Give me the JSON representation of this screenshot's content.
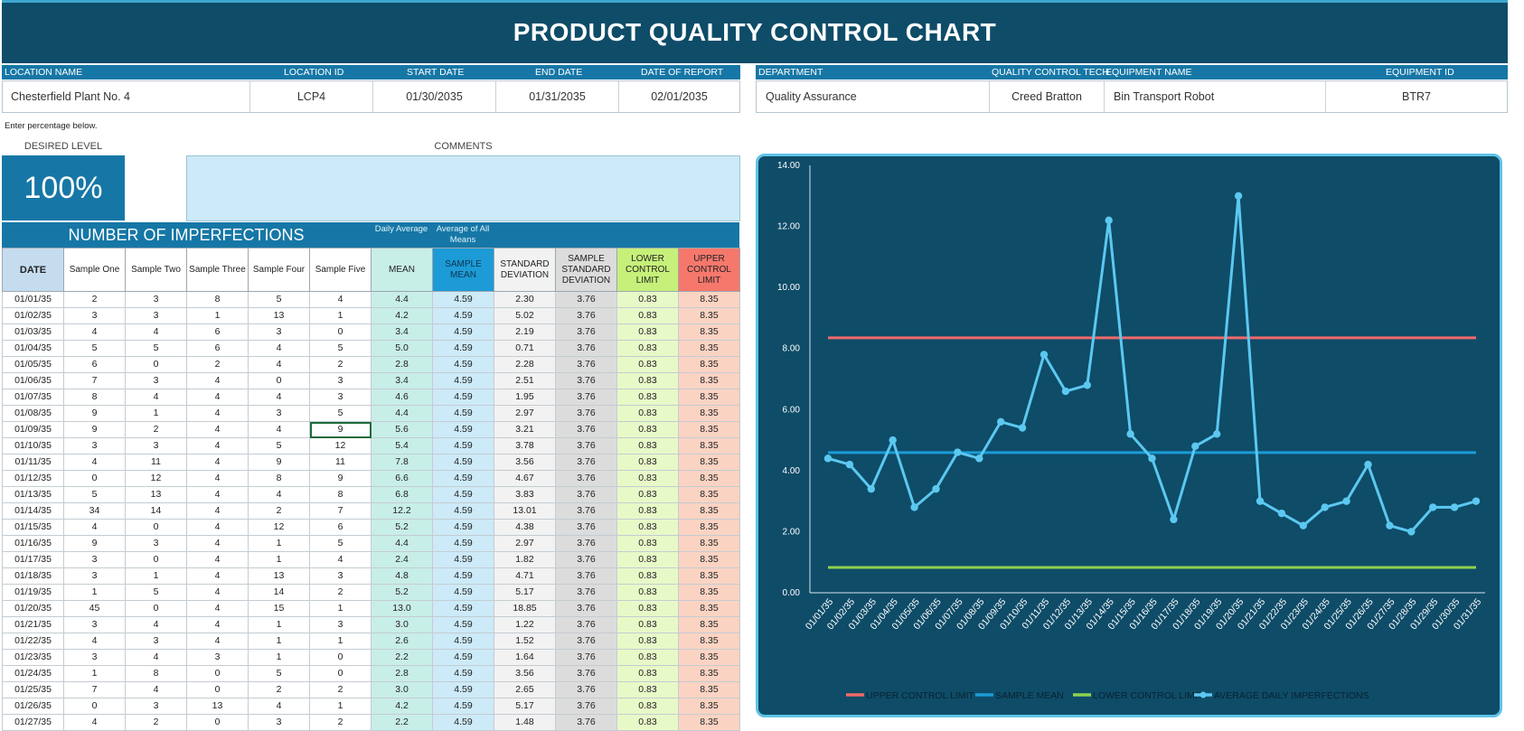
{
  "title": "PRODUCT QUALITY CONTROL CHART",
  "info": {
    "labels": [
      "LOCATION NAME",
      "LOCATION ID",
      "START DATE",
      "END DATE",
      "DATE OF REPORT",
      "DEPARTMENT",
      "QUALITY CONTROL TECH",
      "EQUIPMENT NAME",
      "EQUIPMENT ID"
    ],
    "location_name": "Chesterfield Plant No. 4",
    "location_id": "LCP4",
    "start_date": "01/30/2035",
    "end_date": "01/31/2035",
    "date_of_report": "02/01/2035",
    "department": "Quality Assurance",
    "qc_tech": "Creed Bratton",
    "equipment_name": "Bin Transport Robot",
    "equipment_id": "BTR7"
  },
  "note": "Enter percentage below.",
  "desired_level": {
    "label": "DESIRED LEVEL",
    "value": "100%"
  },
  "comments": {
    "label": "COMMENTS",
    "value": ""
  },
  "section_title": "NUMBER OF IMPERFECTIONS",
  "daily_average_label": "Daily Average",
  "avg_all_means_label": "Average of All Means",
  "columns": [
    "DATE",
    "Sample One",
    "Sample Two",
    "Sample Three",
    "Sample Four",
    "Sample Five",
    "MEAN",
    "SAMPLE MEAN",
    "STANDARD DEVIATION",
    "SAMPLE STANDARD DEVIATION",
    "LOWER CONTROL LIMIT",
    "UPPER CONTROL LIMIT"
  ],
  "rows": [
    [
      "01/01/35",
      "2",
      "3",
      "8",
      "5",
      "4",
      "4.4",
      "4.59",
      "2.30",
      "3.76",
      "0.83",
      "8.35"
    ],
    [
      "01/02/35",
      "3",
      "3",
      "1",
      "13",
      "1",
      "4.2",
      "4.59",
      "5.02",
      "3.76",
      "0.83",
      "8.35"
    ],
    [
      "01/03/35",
      "4",
      "4",
      "6",
      "3",
      "0",
      "3.4",
      "4.59",
      "2.19",
      "3.76",
      "0.83",
      "8.35"
    ],
    [
      "01/04/35",
      "5",
      "5",
      "6",
      "4",
      "5",
      "5.0",
      "4.59",
      "0.71",
      "3.76",
      "0.83",
      "8.35"
    ],
    [
      "01/05/35",
      "6",
      "0",
      "2",
      "4",
      "2",
      "2.8",
      "4.59",
      "2.28",
      "3.76",
      "0.83",
      "8.35"
    ],
    [
      "01/06/35",
      "7",
      "3",
      "4",
      "0",
      "3",
      "3.4",
      "4.59",
      "2.51",
      "3.76",
      "0.83",
      "8.35"
    ],
    [
      "01/07/35",
      "8",
      "4",
      "4",
      "4",
      "3",
      "4.6",
      "4.59",
      "1.95",
      "3.76",
      "0.83",
      "8.35"
    ],
    [
      "01/08/35",
      "9",
      "1",
      "4",
      "3",
      "5",
      "4.4",
      "4.59",
      "2.97",
      "3.76",
      "0.83",
      "8.35"
    ],
    [
      "01/09/35",
      "9",
      "2",
      "4",
      "4",
      "9",
      "5.6",
      "4.59",
      "3.21",
      "3.76",
      "0.83",
      "8.35"
    ],
    [
      "01/10/35",
      "3",
      "3",
      "4",
      "5",
      "12",
      "5.4",
      "4.59",
      "3.78",
      "3.76",
      "0.83",
      "8.35"
    ],
    [
      "01/11/35",
      "4",
      "11",
      "4",
      "9",
      "11",
      "7.8",
      "4.59",
      "3.56",
      "3.76",
      "0.83",
      "8.35"
    ],
    [
      "01/12/35",
      "0",
      "12",
      "4",
      "8",
      "9",
      "6.6",
      "4.59",
      "4.67",
      "3.76",
      "0.83",
      "8.35"
    ],
    [
      "01/13/35",
      "5",
      "13",
      "4",
      "4",
      "8",
      "6.8",
      "4.59",
      "3.83",
      "3.76",
      "0.83",
      "8.35"
    ],
    [
      "01/14/35",
      "34",
      "14",
      "4",
      "2",
      "7",
      "12.2",
      "4.59",
      "13.01",
      "3.76",
      "0.83",
      "8.35"
    ],
    [
      "01/15/35",
      "4",
      "0",
      "4",
      "12",
      "6",
      "5.2",
      "4.59",
      "4.38",
      "3.76",
      "0.83",
      "8.35"
    ],
    [
      "01/16/35",
      "9",
      "3",
      "4",
      "1",
      "5",
      "4.4",
      "4.59",
      "2.97",
      "3.76",
      "0.83",
      "8.35"
    ],
    [
      "01/17/35",
      "3",
      "0",
      "4",
      "1",
      "4",
      "2.4",
      "4.59",
      "1.82",
      "3.76",
      "0.83",
      "8.35"
    ],
    [
      "01/18/35",
      "3",
      "1",
      "4",
      "13",
      "3",
      "4.8",
      "4.59",
      "4.71",
      "3.76",
      "0.83",
      "8.35"
    ],
    [
      "01/19/35",
      "1",
      "5",
      "4",
      "14",
      "2",
      "5.2",
      "4.59",
      "5.17",
      "3.76",
      "0.83",
      "8.35"
    ],
    [
      "01/20/35",
      "45",
      "0",
      "4",
      "15",
      "1",
      "13.0",
      "4.59",
      "18.85",
      "3.76",
      "0.83",
      "8.35"
    ],
    [
      "01/21/35",
      "3",
      "4",
      "4",
      "1",
      "3",
      "3.0",
      "4.59",
      "1.22",
      "3.76",
      "0.83",
      "8.35"
    ],
    [
      "01/22/35",
      "4",
      "3",
      "4",
      "1",
      "1",
      "2.6",
      "4.59",
      "1.52",
      "3.76",
      "0.83",
      "8.35"
    ],
    [
      "01/23/35",
      "3",
      "4",
      "3",
      "1",
      "0",
      "2.2",
      "4.59",
      "1.64",
      "3.76",
      "0.83",
      "8.35"
    ],
    [
      "01/24/35",
      "1",
      "8",
      "0",
      "5",
      "0",
      "2.8",
      "4.59",
      "3.56",
      "3.76",
      "0.83",
      "8.35"
    ],
    [
      "01/25/35",
      "7",
      "4",
      "0",
      "2",
      "2",
      "3.0",
      "4.59",
      "2.65",
      "3.76",
      "0.83",
      "8.35"
    ],
    [
      "01/26/35",
      "0",
      "3",
      "13",
      "4",
      "1",
      "4.2",
      "4.59",
      "5.17",
      "3.76",
      "0.83",
      "8.35"
    ],
    [
      "01/27/35",
      "4",
      "2",
      "0",
      "3",
      "2",
      "2.2",
      "4.59",
      "1.48",
      "3.76",
      "0.83",
      "8.35"
    ]
  ],
  "colors": {
    "banner": "#0e4c68",
    "accent": "#1677a6",
    "mean_bg": "#c8eee8",
    "sample_mean_bg": "#cdeaf8",
    "sample_mean_header": "#1c9bd6",
    "std_bg": "#f2f2f2",
    "sstd_bg": "#dcdcdc",
    "lcl_bg": "#e8f9c8",
    "lcl_header": "#c6f07a",
    "ucl_bg": "#fbd3c2",
    "ucl_header": "#f6786c",
    "date_header": "#c5dcef"
  },
  "chart_data": {
    "type": "line",
    "x": [
      "01/01/35",
      "01/02/35",
      "01/03/35",
      "01/04/35",
      "01/05/35",
      "01/06/35",
      "01/07/35",
      "01/08/35",
      "01/09/35",
      "01/10/35",
      "01/11/35",
      "01/12/35",
      "01/13/35",
      "01/14/35",
      "01/15/35",
      "01/16/35",
      "01/17/35",
      "01/18/35",
      "01/19/35",
      "01/20/35",
      "01/21/35",
      "01/22/35",
      "01/23/35",
      "01/24/35",
      "01/25/35",
      "01/26/35",
      "01/27/35",
      "01/28/35",
      "01/29/35",
      "01/30/35",
      "01/31/35"
    ],
    "series": [
      {
        "name": "UPPER CONTROL LIMIT",
        "color": "#f06a6a",
        "values": [
          8.35,
          8.35,
          8.35,
          8.35,
          8.35,
          8.35,
          8.35,
          8.35,
          8.35,
          8.35,
          8.35,
          8.35,
          8.35,
          8.35,
          8.35,
          8.35,
          8.35,
          8.35,
          8.35,
          8.35,
          8.35,
          8.35,
          8.35,
          8.35,
          8.35,
          8.35,
          8.35,
          8.35,
          8.35,
          8.35,
          8.35
        ]
      },
      {
        "name": "SAMPLE MEAN",
        "color": "#1c9bd6",
        "values": [
          4.59,
          4.59,
          4.59,
          4.59,
          4.59,
          4.59,
          4.59,
          4.59,
          4.59,
          4.59,
          4.59,
          4.59,
          4.59,
          4.59,
          4.59,
          4.59,
          4.59,
          4.59,
          4.59,
          4.59,
          4.59,
          4.59,
          4.59,
          4.59,
          4.59,
          4.59,
          4.59,
          4.59,
          4.59,
          4.59,
          4.59
        ]
      },
      {
        "name": "LOWER CONTROL LIMIT",
        "color": "#8fd14f",
        "values": [
          0.83,
          0.83,
          0.83,
          0.83,
          0.83,
          0.83,
          0.83,
          0.83,
          0.83,
          0.83,
          0.83,
          0.83,
          0.83,
          0.83,
          0.83,
          0.83,
          0.83,
          0.83,
          0.83,
          0.83,
          0.83,
          0.83,
          0.83,
          0.83,
          0.83,
          0.83,
          0.83,
          0.83,
          0.83,
          0.83,
          0.83
        ]
      },
      {
        "name": "AVERAGE DAILY IMPERFECTIONS",
        "color": "#5cc8f0",
        "marker": "circle",
        "values": [
          4.4,
          4.2,
          3.4,
          5.0,
          2.8,
          3.4,
          4.6,
          4.4,
          5.6,
          5.4,
          7.8,
          6.6,
          6.8,
          12.2,
          5.2,
          4.4,
          2.4,
          4.8,
          5.2,
          13.0,
          3.0,
          2.6,
          2.2,
          2.8,
          3.0,
          4.2,
          2.2,
          2.0,
          2.8,
          2.8,
          3.0
        ]
      }
    ],
    "ylim": [
      0,
      14
    ],
    "yticks": [
      "0.00",
      "2.00",
      "4.00",
      "6.00",
      "8.00",
      "10.00",
      "12.00",
      "14.00"
    ],
    "legend": "bottom"
  }
}
